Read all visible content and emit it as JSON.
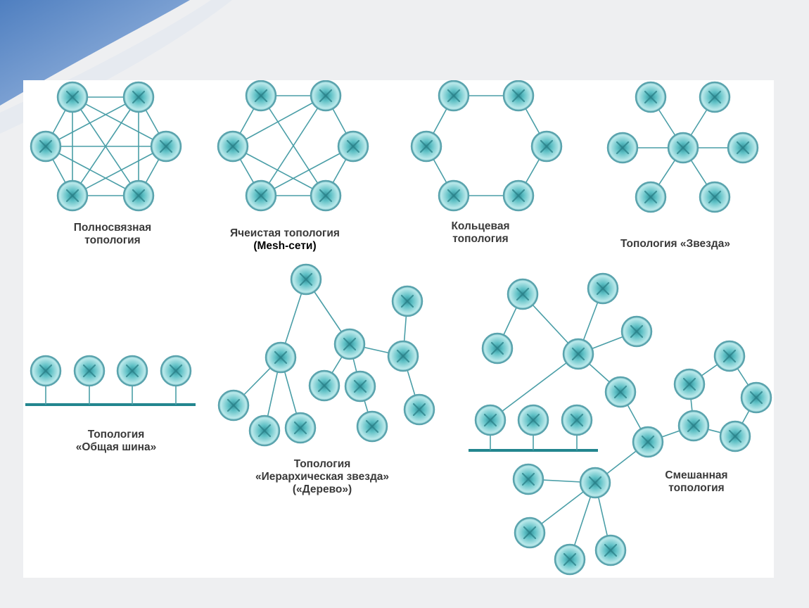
{
  "colors": {
    "background": "#eeeff1",
    "panel": "#ffffff",
    "corner_accent": "#5b86c3",
    "node_fill": "#5fc1c6",
    "node_stroke": "#5aa3ad",
    "link": "#4a9ea7",
    "bus": "#23868f",
    "label": "#3a3a3a"
  },
  "icons": {
    "node": "network-node-icon"
  },
  "topologies": [
    {
      "id": "full",
      "label_lines": [
        "Полносвязная",
        "топология"
      ]
    },
    {
      "id": "mesh",
      "label_lines": [
        "Ячеистая топология",
        "(Mesh-сети)"
      ]
    },
    {
      "id": "ring",
      "label_lines": [
        "Кольцевая",
        "топология"
      ]
    },
    {
      "id": "star",
      "label_lines": [
        "Топология «Звезда»"
      ]
    },
    {
      "id": "bus",
      "label_lines": [
        "Топология",
        "«Общая шина»"
      ]
    },
    {
      "id": "tree",
      "label_lines": [
        "Топология",
        "«Иерархическая звезда»",
        "(«Дерево»)"
      ]
    },
    {
      "id": "mixed",
      "label_lines": [
        "Смешанная",
        "топология"
      ]
    }
  ]
}
